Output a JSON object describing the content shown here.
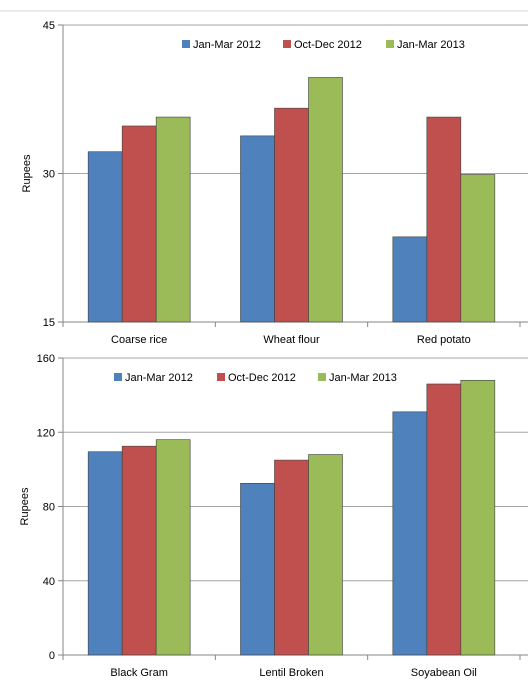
{
  "colors": {
    "blue": "#4f81bd",
    "red": "#c0504d",
    "green": "#9bbb59",
    "grid": "#a6a6a6",
    "axis": "#868686"
  },
  "chart_data": [
    {
      "type": "bar",
      "title": "",
      "xlabel": "",
      "ylabel": "Rupees",
      "ylim": [
        15,
        45
      ],
      "yticks": [
        15,
        30,
        45
      ],
      "grid": true,
      "legend_position": "top",
      "categories": [
        "Coarse rice",
        "Wheat flour",
        "Red potato"
      ],
      "series": [
        {
          "name": "Jan-Mar 2012",
          "color": "blue",
          "values": [
            32.2,
            33.8,
            23.6
          ]
        },
        {
          "name": "Oct-Dec 2012",
          "color": "red",
          "values": [
            34.8,
            36.6,
            35.7
          ]
        },
        {
          "name": "Jan-Mar 2013",
          "color": "green",
          "values": [
            35.7,
            39.7,
            29.9
          ]
        }
      ]
    },
    {
      "type": "bar",
      "title": "",
      "xlabel": "",
      "ylabel": "Rupees",
      "ylim": [
        0,
        160
      ],
      "yticks": [
        0,
        40,
        80,
        120,
        160
      ],
      "grid": true,
      "legend_position": "top",
      "categories": [
        "Black Gram",
        "Lentil Broken",
        "Soyabean Oil"
      ],
      "series": [
        {
          "name": "Jan-Mar 2012",
          "color": "blue",
          "values": [
            109.5,
            92.5,
            131
          ]
        },
        {
          "name": "Oct-Dec 2012",
          "color": "red",
          "values": [
            112.5,
            105,
            146
          ]
        },
        {
          "name": "Jan-Mar 2013",
          "color": "green",
          "values": [
            116,
            108,
            148
          ]
        }
      ]
    }
  ]
}
